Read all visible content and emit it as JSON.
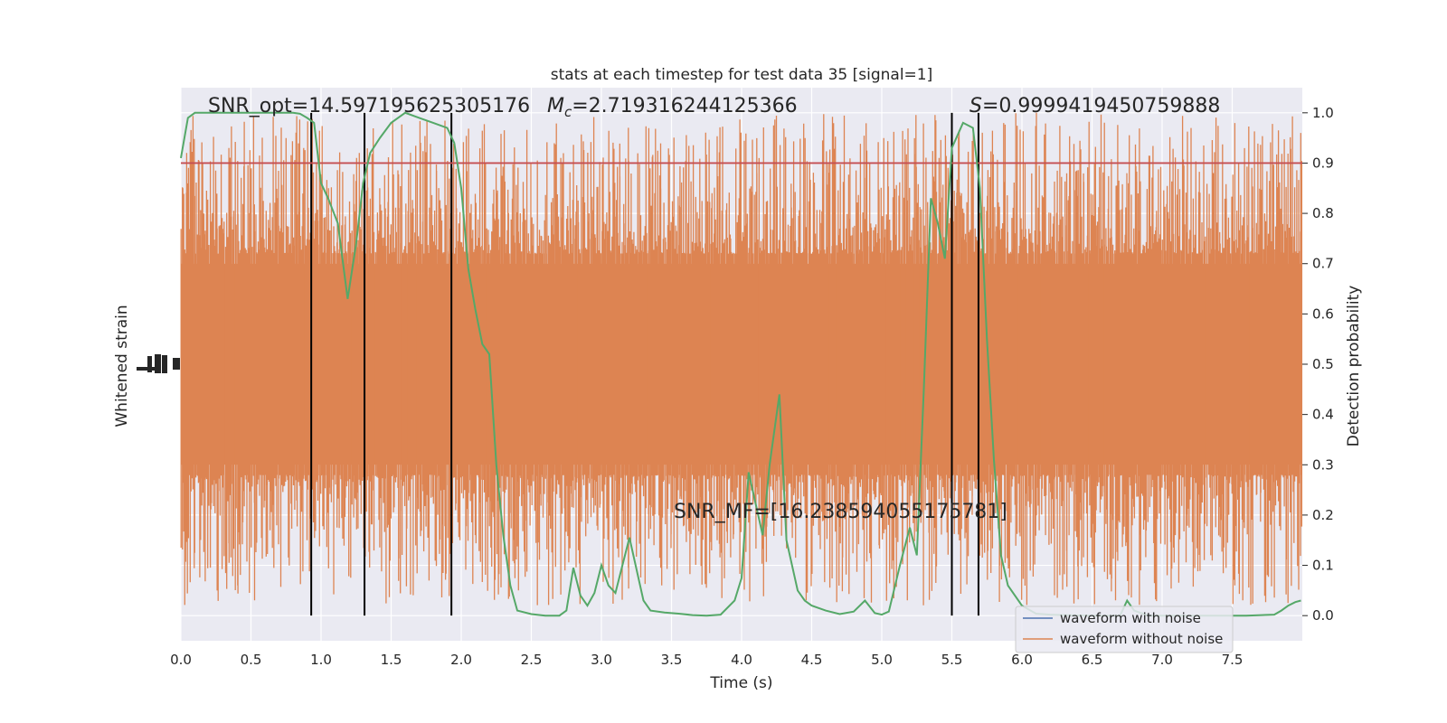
{
  "colors": {
    "background": "#eaeaf2",
    "grid": "#ffffff",
    "noise_waveform": "#dd8452",
    "clean_waveform": "#4c72b0",
    "probability": "#55a868",
    "threshold": "#c44e52",
    "markers": "#000000"
  },
  "chart_data": {
    "type": "line",
    "title": "stats at each timestep for test data 35 [signal=1]",
    "xlabel": "Time (s)",
    "ylabel_left": "Whitened strain",
    "ylabel_right": "Detection probability",
    "xlim": [
      0.0,
      8.0
    ],
    "ylim_right": [
      -0.05,
      1.05
    ],
    "x_ticks": [
      "0.0",
      "0.5",
      "1.0",
      "1.5",
      "2.0",
      "2.5",
      "3.0",
      "3.5",
      "4.0",
      "4.5",
      "5.0",
      "5.5",
      "6.0",
      "6.5",
      "7.0",
      "7.5"
    ],
    "x_tick_values": [
      0.0,
      0.5,
      1.0,
      1.5,
      2.0,
      2.5,
      3.0,
      3.5,
      4.0,
      4.5,
      5.0,
      5.5,
      6.0,
      6.5,
      7.0,
      7.5
    ],
    "y_ticks_right": [
      "0.0",
      "0.1",
      "0.2",
      "0.3",
      "0.4",
      "0.5",
      "0.6",
      "0.7",
      "0.8",
      "0.9",
      "1.0"
    ],
    "y_tick_values_right": [
      0.0,
      0.1,
      0.2,
      0.3,
      0.4,
      0.5,
      0.6,
      0.7,
      0.8,
      0.9,
      1.0
    ],
    "grid": true,
    "legend_position": "bottom-right",
    "series": [
      {
        "name": "waveform with noise"
      },
      {
        "name": "waveform without noise"
      }
    ],
    "noise_band": {
      "core": [
        0.3,
        0.7
      ],
      "spike_extent": [
        0.0,
        1.0
      ]
    },
    "detection_probability": {
      "x": [
        0.0,
        0.05,
        0.1,
        0.2,
        0.3,
        0.4,
        0.5,
        0.6,
        0.7,
        0.8,
        0.85,
        0.9,
        0.95,
        1.0,
        1.05,
        1.12,
        1.19,
        1.25,
        1.3,
        1.35,
        1.42,
        1.5,
        1.6,
        1.7,
        1.8,
        1.9,
        1.95,
        2.0,
        2.05,
        2.1,
        2.15,
        2.2,
        2.25,
        2.3,
        2.35,
        2.4,
        2.5,
        2.6,
        2.7,
        2.75,
        2.8,
        2.85,
        2.9,
        2.95,
        3.0,
        3.05,
        3.1,
        3.2,
        3.3,
        3.35,
        3.45,
        3.55,
        3.65,
        3.75,
        3.85,
        3.95,
        4.0,
        4.05,
        4.15,
        4.2,
        4.27,
        4.32,
        4.4,
        4.45,
        4.5,
        4.6,
        4.7,
        4.8,
        4.88,
        4.95,
        5.0,
        5.05,
        5.13,
        5.2,
        5.25,
        5.3,
        5.35,
        5.4,
        5.45,
        5.5,
        5.58,
        5.65,
        5.7,
        5.75,
        5.8,
        5.85,
        5.9,
        6.0,
        6.1,
        6.2,
        6.3,
        6.5,
        6.6,
        6.7,
        6.75,
        6.8,
        6.9,
        7.0,
        7.2,
        7.4,
        7.6,
        7.8,
        7.85,
        7.9,
        7.95,
        7.99
      ],
      "y": [
        0.91,
        0.99,
        1.0,
        1.0,
        1.0,
        1.0,
        1.0,
        1.0,
        1.0,
        1.0,
        0.998,
        0.99,
        0.98,
        0.86,
        0.83,
        0.78,
        0.63,
        0.74,
        0.86,
        0.92,
        0.95,
        0.98,
        1.0,
        0.99,
        0.98,
        0.97,
        0.94,
        0.85,
        0.69,
        0.61,
        0.54,
        0.52,
        0.3,
        0.16,
        0.06,
        0.01,
        0.003,
        0.0,
        0.0,
        0.01,
        0.095,
        0.04,
        0.02,
        0.045,
        0.1,
        0.06,
        0.045,
        0.155,
        0.03,
        0.01,
        0.006,
        0.004,
        0.001,
        0.0,
        0.002,
        0.03,
        0.075,
        0.285,
        0.16,
        0.3,
        0.44,
        0.15,
        0.05,
        0.03,
        0.02,
        0.01,
        0.003,
        0.008,
        0.03,
        0.005,
        0.002,
        0.008,
        0.1,
        0.175,
        0.12,
        0.45,
        0.83,
        0.78,
        0.71,
        0.93,
        0.98,
        0.97,
        0.85,
        0.55,
        0.31,
        0.12,
        0.06,
        0.02,
        0.004,
        0.002,
        0.001,
        0.0,
        0.0,
        0.0,
        0.03,
        0.01,
        0.0,
        0.0,
        0.0,
        0.0,
        0.0,
        0.002,
        0.01,
        0.02,
        0.027,
        0.03
      ]
    },
    "threshold": {
      "y": 0.9
    },
    "vertical_markers": [
      0.93,
      1.31,
      1.93,
      5.5,
      5.69
    ],
    "annotations": {
      "snr_opt": "SNR_opt=14.597195625305176",
      "mc_symbol": "M",
      "mc_subscript": "c",
      "mc_value": "=2.719316244125366",
      "s_symbol": "S",
      "s_value": "=0.9999419450759888",
      "snr_mf": "SNR_MF=[16.238594055175781]"
    }
  }
}
